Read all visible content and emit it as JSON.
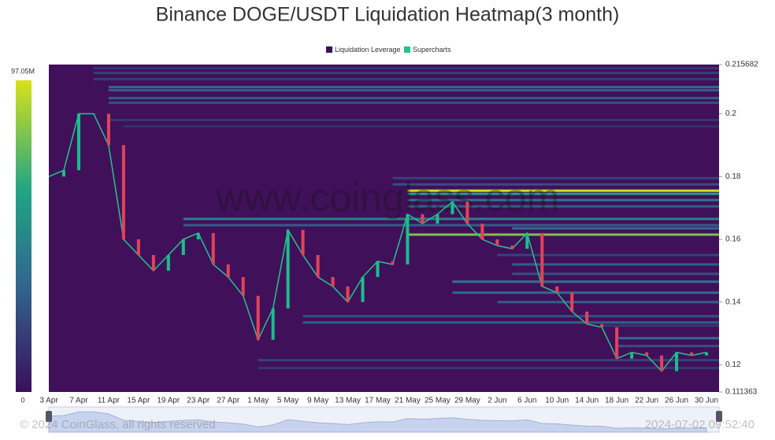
{
  "chart_data": {
    "type": "heatmap",
    "title": "Binance DOGE/USDT Liquidation Heatmap(3 month)",
    "heatmap_name": "Liquidation Leverage",
    "heatmap_color": "#3b0f5c",
    "series": [
      {
        "name": "Supercharts",
        "color": "#22c58b",
        "values": [
          0.18,
          0.182,
          0.2,
          0.2,
          0.19,
          0.16,
          0.155,
          0.15,
          0.155,
          0.16,
          0.162,
          0.152,
          0.148,
          0.142,
          0.128,
          0.138,
          0.163,
          0.155,
          0.148,
          0.145,
          0.14,
          0.148,
          0.153,
          0.152,
          0.168,
          0.165,
          0.168,
          0.172,
          0.165,
          0.16,
          0.158,
          0.157,
          0.162,
          0.145,
          0.143,
          0.137,
          0.133,
          0.132,
          0.122,
          0.124,
          0.123,
          0.118,
          0.124,
          0.123,
          0.124
        ]
      }
    ],
    "categories": [
      "3 Apr",
      null,
      "7 Apr",
      null,
      "11 Apr",
      null,
      "15 Apr",
      null,
      "19 Apr",
      null,
      "23 Apr",
      null,
      "27 Apr",
      null,
      "1 May",
      null,
      "5 May",
      null,
      "9 May",
      null,
      "13 May",
      null,
      "17 May",
      null,
      "21 May",
      null,
      "25 May",
      null,
      "29 May",
      null,
      "2 Jun",
      null,
      "6 Jun",
      null,
      "10 Jun",
      null,
      "14 Jun",
      null,
      "18 Jun",
      null,
      "22 Jun",
      null,
      "26 Jun",
      null,
      "30 Jun"
    ],
    "bands": {
      "levels": [
        0.2145,
        0.213,
        0.211,
        0.2085,
        0.2075,
        0.205,
        0.2035,
        0.198,
        0.196,
        0.1795,
        0.1775,
        0.1755,
        0.1745,
        0.1725,
        0.1705,
        0.1665,
        0.1645,
        0.1635,
        0.1615,
        0.155,
        0.152,
        0.149,
        0.1465,
        0.143,
        0.14,
        0.1355,
        0.1335,
        0.1325,
        0.1285,
        0.126,
        0.1215,
        0.119
      ],
      "start": [
        3,
        3,
        3,
        4,
        4,
        4,
        4,
        4,
        5,
        23,
        23,
        24,
        24,
        24,
        24,
        9,
        9,
        31,
        24,
        30,
        31,
        31,
        27,
        27,
        30,
        17,
        17,
        37,
        38,
        38,
        14,
        14
      ],
      "values": [
        15000000,
        20000000,
        18000000,
        35000000,
        30000000,
        30000000,
        25000000,
        15000000,
        12000000,
        20000000,
        25000000,
        95000000,
        60000000,
        40000000,
        30000000,
        45000000,
        30000000,
        35000000,
        80000000,
        20000000,
        30000000,
        25000000,
        40000000,
        35000000,
        30000000,
        25000000,
        30000000,
        15000000,
        35000000,
        25000000,
        20000000,
        15000000
      ]
    },
    "ylim": [
      0.111363,
      0.215682
    ],
    "yticks": [
      0.111363,
      0.12,
      0.14,
      0.16,
      0.18,
      0.2,
      0.215682
    ],
    "colorlim": [
      0,
      97050000
    ],
    "colorticks": [
      0,
      {
        "value": 97050000,
        "label": "97.05M"
      }
    ],
    "watermark": "www.coinglass.com",
    "footer": "© 2024 CoinGlass, all rights reserved",
    "timestamp": "2024-07-02 09:52:40"
  }
}
